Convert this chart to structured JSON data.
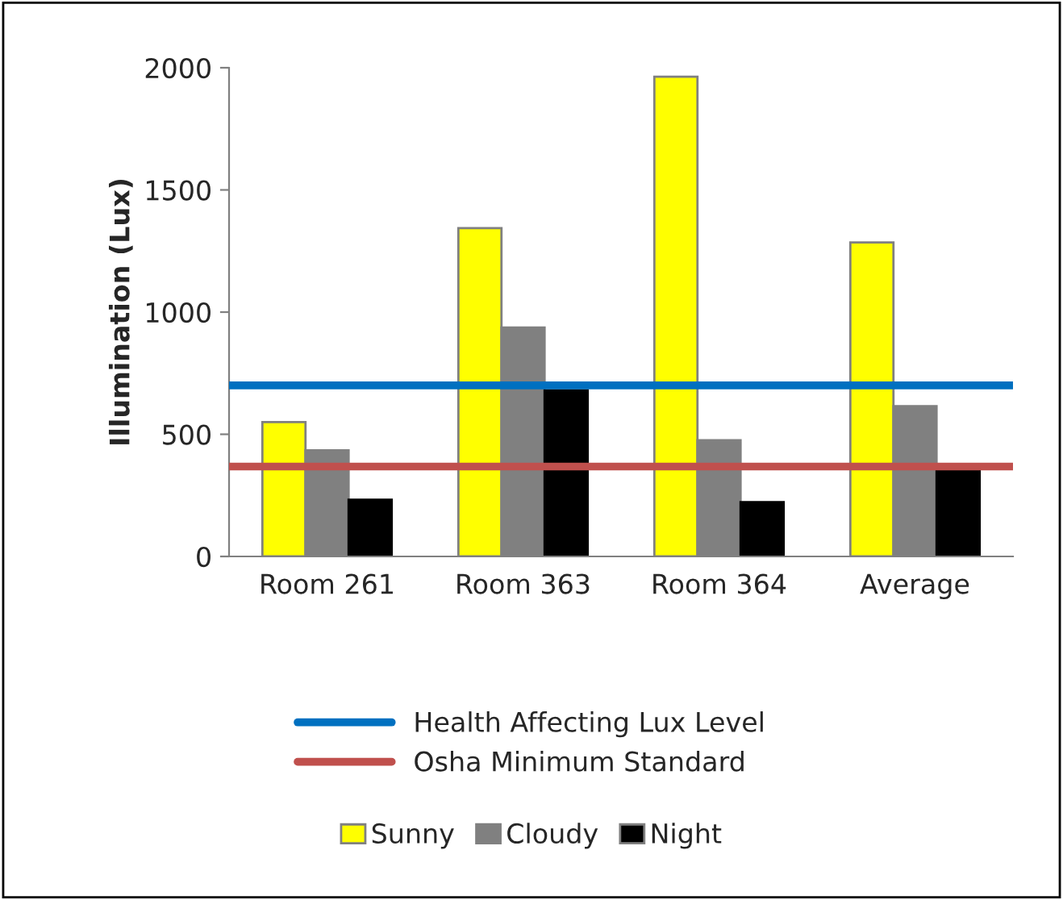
{
  "chart_data": {
    "type": "bar",
    "ylabel": "Illumination (Lux)",
    "categories": [
      "Room 261",
      "Room 363",
      "Room 364",
      "Average"
    ],
    "series": [
      {
        "name": "Sunny",
        "color": "#ffff00",
        "values": [
          550,
          1344,
          1963,
          1285
        ]
      },
      {
        "name": "Cloudy",
        "color": "#808080",
        "values": [
          434,
          937,
          476,
          615
        ]
      },
      {
        "name": "Night",
        "color": "#000000",
        "values": [
          232,
          680,
          222,
          360
        ]
      }
    ],
    "ylim": [
      0,
      2000
    ],
    "yticks": [
      0,
      500,
      1000,
      1500,
      2000
    ],
    "ref_lines": [
      {
        "axis": "y",
        "value": 700,
        "label": "Health Affecting Lux Level",
        "color": "#0070c0"
      },
      {
        "axis": "y",
        "value": 368,
        "label": "Osha Minimum Standard",
        "color": "#c0504d"
      }
    ],
    "grid": false,
    "legend": "bottom"
  }
}
